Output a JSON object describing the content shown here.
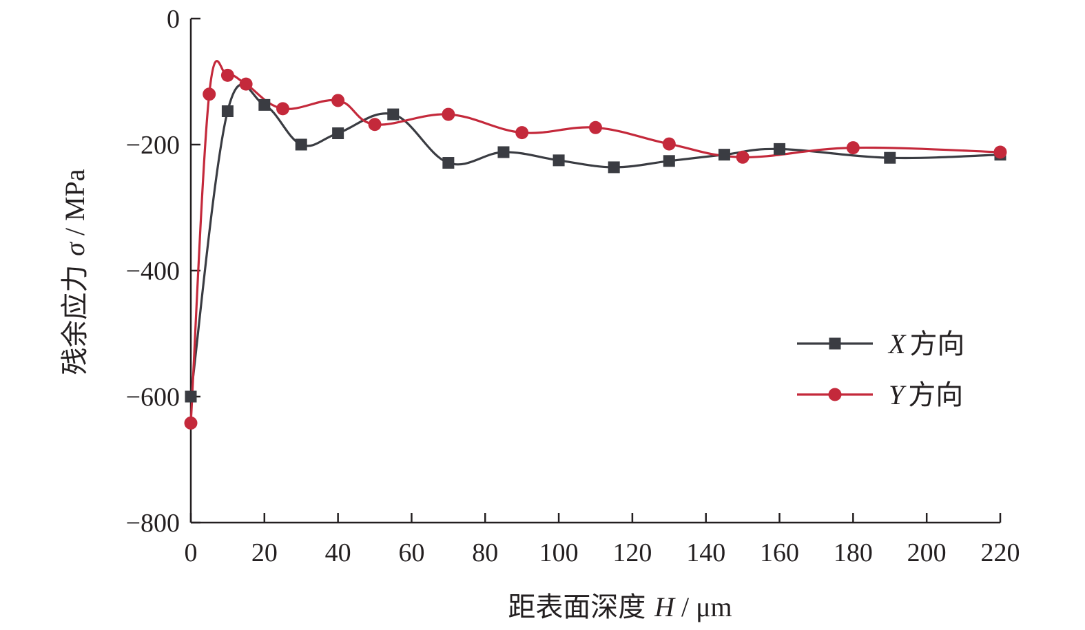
{
  "chart_data": {
    "type": "line",
    "xlabel": {
      "text": "距表面深度 ",
      "var": "H",
      "unit": " / μm"
    },
    "ylabel": {
      "text": "残余应力 ",
      "var": "σ",
      "unit": " / MPa"
    },
    "xlim": [
      0,
      220
    ],
    "ylim": [
      -800,
      0
    ],
    "xticks": [
      0,
      20,
      40,
      60,
      80,
      100,
      120,
      140,
      160,
      180,
      200,
      220
    ],
    "yticks": [
      0,
      -200,
      -400,
      -600,
      -800
    ],
    "ytick_labels": [
      "0",
      "−200",
      "−400",
      "−600",
      "−800"
    ],
    "grid": false,
    "legend_position": "center-right",
    "series": [
      {
        "name": "X方向",
        "name_var": "X",
        "name_text": "方向",
        "color": "#3a3c42",
        "marker": "square",
        "x": [
          0,
          10,
          20,
          30,
          40,
          55,
          70,
          85,
          100,
          115,
          130,
          145,
          160,
          190,
          220
        ],
        "y": [
          -600,
          -147,
          -137,
          -200,
          -182,
          -152,
          -229,
          -212,
          -225,
          -236,
          -226,
          -216,
          -207,
          -221,
          -216
        ]
      },
      {
        "name": "Y方向",
        "name_var": "Y",
        "name_text": "方向",
        "color": "#c4293b",
        "marker": "circle",
        "x": [
          0,
          5,
          10,
          15,
          25,
          40,
          50,
          70,
          90,
          110,
          130,
          150,
          180,
          220
        ],
        "y": [
          -642,
          -120,
          -90,
          -104,
          -143,
          -130,
          -168,
          -152,
          -181,
          -173,
          -199,
          -220,
          -205,
          -212
        ]
      }
    ]
  }
}
